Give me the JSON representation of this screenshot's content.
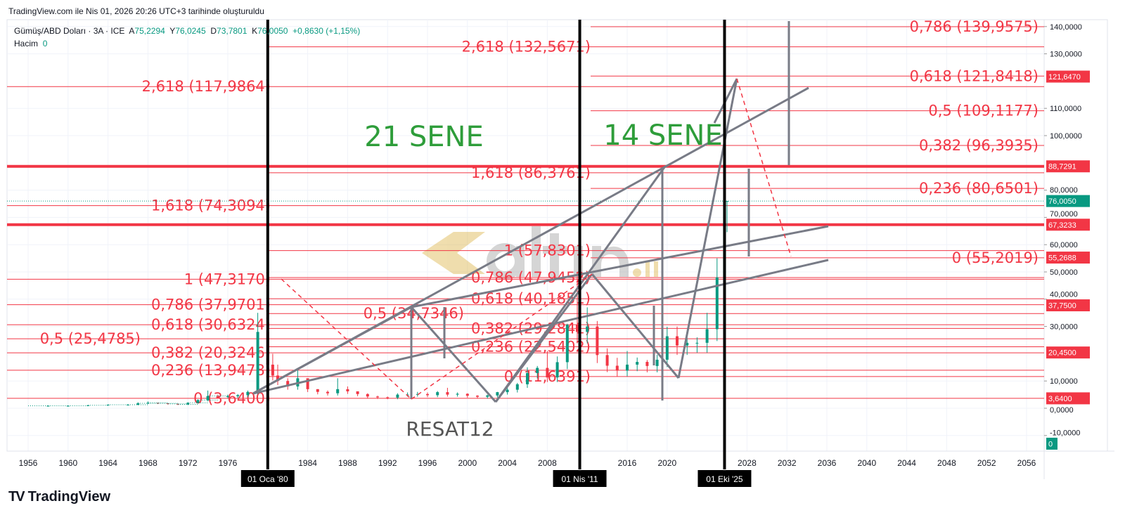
{
  "caption": "TradingView.com ile Nis 01, 2026 20:26 UTC+3 tarihinde oluşturuldu",
  "legend": {
    "symbol": "Gümüş/ABD Doları · 3A · ICE",
    "open_label": "A",
    "open": "75,2294",
    "high_label": "Y",
    "high": "76,0245",
    "low_label": "D",
    "low": "73,7801",
    "close_label": "K",
    "close": "76,0050",
    "change": "+0,8630 (+1,15%)",
    "volume_label": "Hacim",
    "volume": "0"
  },
  "brand": {
    "name": "TradingView"
  },
  "annotations": {
    "left_span": "21 SENE",
    "right_span": "14 SENE",
    "watermark": "altın.in",
    "author": "RESAT12"
  },
  "colors": {
    "fib": "#f23645",
    "up": "#089981",
    "down": "#f23645",
    "trend": "#787b86",
    "span_text": "#2e9d3a",
    "vline": "#000000"
  },
  "chart_data": {
    "type": "candlestick",
    "ylim": [
      -15,
      145
    ],
    "xlim": [
      1953,
      2057
    ],
    "y_ticks": [
      "140,0000",
      "130,0000",
      "110,0000",
      "100,0000",
      "80,0000",
      "70,0000",
      "60,0000",
      "50,0000",
      "40,0000",
      "30,0000",
      "10,0000",
      "0,0000",
      "-10,0000"
    ],
    "y_tick_values": [
      140,
      130,
      110,
      100,
      80,
      70,
      60,
      50,
      40,
      30,
      10,
      0,
      -10
    ],
    "x_ticks": [
      "1956",
      "1960",
      "1964",
      "1968",
      "1972",
      "1976",
      "1984",
      "1988",
      "1992",
      "1996",
      "2000",
      "2004",
      "2008",
      "2016",
      "2020",
      "2028",
      "2032",
      "2036",
      "2040",
      "2044",
      "2048",
      "2052",
      "2056"
    ],
    "x_tick_values": [
      1956,
      1960,
      1964,
      1968,
      1972,
      1976,
      1984,
      1988,
      1992,
      1996,
      2000,
      2004,
      2008,
      2016,
      2020,
      2028,
      2032,
      2036,
      2040,
      2044,
      2048,
      2052,
      2056
    ],
    "vertical_markers": [
      {
        "label": "01 Oca '80",
        "year": 1980.0
      },
      {
        "label": "01 Nis '11",
        "year": 2011.25
      },
      {
        "label": "01 Eki '25",
        "year": 2025.75
      }
    ],
    "closes": {
      "years": [
        1956,
        1958,
        1960,
        1962,
        1964,
        1966,
        1967,
        1968,
        1969,
        1970,
        1971,
        1972,
        1973,
        1974,
        1975,
        1976,
        1977,
        1978,
        1979,
        1980,
        1980.5,
        1981,
        1982,
        1983,
        1984,
        1985,
        1986,
        1987,
        1988,
        1989,
        1990,
        1991,
        1992,
        1993,
        1994,
        1995,
        1996,
        1997,
        1998,
        1999,
        2000,
        2001,
        2002,
        2003,
        2004,
        2005,
        2006,
        2007,
        2008,
        2009,
        2010,
        2011,
        2012,
        2013,
        2014,
        2015,
        2016,
        2017,
        2018,
        2019,
        2020,
        2021,
        2022,
        2023,
        2024,
        2025,
        2025.75,
        2026
      ],
      "values": [
        0.9,
        0.9,
        0.9,
        1.1,
        1.3,
        1.3,
        1.8,
        2.0,
        1.8,
        1.6,
        1.4,
        2.0,
        3.0,
        4.5,
        4.3,
        4.4,
        4.8,
        6.0,
        28,
        16,
        12,
        10,
        8,
        11,
        7,
        6,
        5.5,
        7,
        6.2,
        5.2,
        4.3,
        4,
        3.9,
        5,
        5,
        5.2,
        4.8,
        5.9,
        5,
        5.3,
        4.6,
        4.2,
        4.7,
        5.9,
        6.8,
        8.8,
        12.9,
        14.8,
        11.3,
        16.9,
        30.6,
        28,
        30,
        19.5,
        15.6,
        13.8,
        16,
        17,
        15.5,
        17.8,
        26.4,
        23,
        24,
        24,
        29,
        48,
        76.005,
        76.005
      ],
      "highs": [
        1,
        1,
        1,
        1.2,
        1.4,
        1.4,
        2.2,
        2.5,
        2,
        1.8,
        1.6,
        2.2,
        3.3,
        6.5,
        5,
        5,
        5.2,
        6.5,
        35,
        47.317,
        20,
        16,
        11,
        14.7,
        9.5,
        7,
        6.5,
        11,
        8,
        6,
        5.5,
        4.6,
        4.3,
        5.5,
        5.8,
        6,
        5.8,
        6.3,
        7.5,
        5.8,
        5.5,
        4.8,
        5,
        6,
        8.3,
        9.3,
        15,
        15.5,
        21,
        19,
        31,
        49.8,
        37,
        32,
        22,
        18.5,
        21,
        18.6,
        17.7,
        19.6,
        29.9,
        30,
        26,
        26,
        35,
        55,
        121.647,
        76.0245
      ]
    },
    "price_labels": [
      {
        "value": "121,6470",
        "y": 121.647,
        "color": "#f23645"
      },
      {
        "value": "88,7291",
        "y": 88.7291,
        "color": "#f23645"
      },
      {
        "value": "76,0050",
        "y": 76.005,
        "color": "#089981"
      },
      {
        "value": "67,3233",
        "y": 67.3233,
        "color": "#f23645"
      },
      {
        "value": "55,2688",
        "y": 55.2688,
        "color": "#f23645"
      },
      {
        "value": "37,7500",
        "y": 37.75,
        "color": "#f23645"
      },
      {
        "value": "20,4500",
        "y": 20.45,
        "color": "#f23645"
      },
      {
        "value": "3,6400",
        "y": 3.64,
        "color": "#f23645"
      },
      {
        "value": "0",
        "y": -13,
        "color": "#089981"
      }
    ],
    "horizontal_levels": [
      88.7291,
      67.3233
    ],
    "fib_sets": [
      {
        "levels": [
          {
            "label": "0 (3,6400)",
            "price": 3.64
          },
          {
            "label": "0,236 (13,9478)",
            "price": 13.9478
          },
          {
            "label": "0,382 (20,3246)",
            "price": 20.3246
          },
          {
            "label": "0,5 (25,4785)",
            "price": 25.4785
          },
          {
            "label": "0,618 (30,6324)",
            "price": 30.6324
          },
          {
            "label": "0,786 (37,9701)",
            "price": 37.9701
          },
          {
            "label": "1 (47,3170)",
            "price": 47.317
          },
          {
            "label": "1,618 (74,3094)",
            "price": 74.3094
          },
          {
            "label": "2,618 (117,9864)",
            "price": 117.9864
          }
        ]
      },
      {
        "levels": [
          {
            "label": "0 (11,6391)",
            "price": 11.6391
          },
          {
            "label": "0,236 (22,5402)",
            "price": 22.5402
          },
          {
            "label": "0,382 (29,2841)",
            "price": 29.2841
          },
          {
            "label": "0,5 (34,7346)",
            "price": 34.7346
          },
          {
            "label": "0,618 (40,1851)",
            "price": 40.1851
          },
          {
            "label": "0,786 (47,9452)",
            "price": 47.9452
          },
          {
            "label": "1 (57,8301)",
            "price": 57.8301
          },
          {
            "label": "1,618 (86,3761)",
            "price": 86.3761
          },
          {
            "label": "2,618 (132,5671)",
            "price": 132.5671
          }
        ]
      },
      {
        "levels": [
          {
            "label": "0 (55,2019)",
            "price": 55.2019
          },
          {
            "label": "0,236 (80,6501)",
            "price": 80.6501
          },
          {
            "label": "0,382 (96,3935)",
            "price": 96.3935
          },
          {
            "label": "0,5 (109,1177)",
            "price": 109.1177
          },
          {
            "label": "0,618 (121,8418)",
            "price": 121.8418
          },
          {
            "label": "0,786 (139,9575)",
            "price": 139.9575
          }
        ]
      }
    ]
  }
}
